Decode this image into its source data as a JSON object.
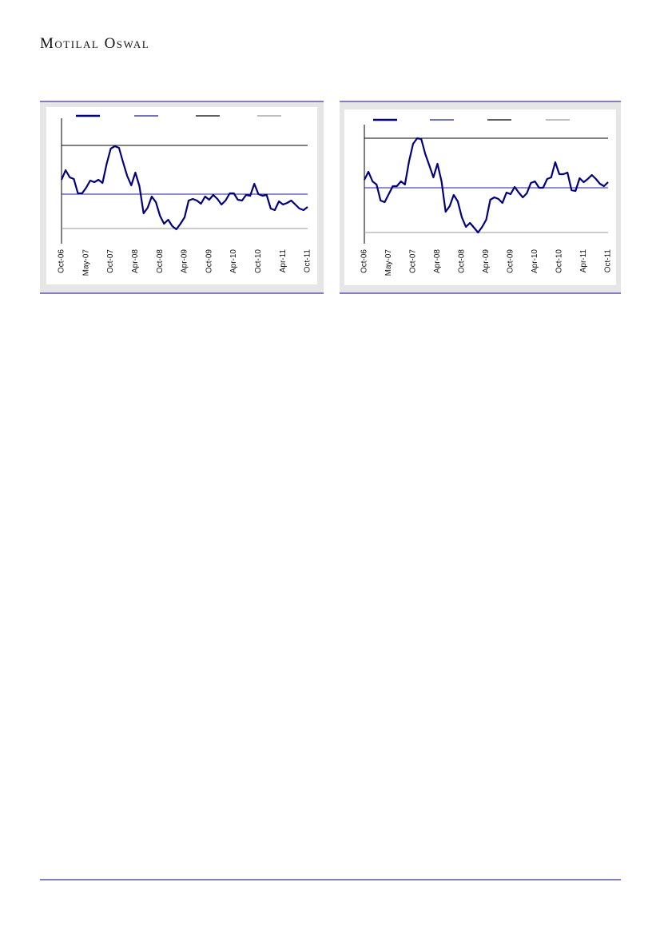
{
  "header": {
    "brand": "Motilal Oswal"
  },
  "chart_data": [
    {
      "type": "line",
      "categories": [
        "Oct-06",
        null,
        null,
        null,
        null,
        null,
        "May-07",
        null,
        null,
        null,
        null,
        null,
        "Oct-07",
        null,
        null,
        null,
        null,
        null,
        "Apr-08",
        null,
        null,
        null,
        null,
        null,
        "Oct-08",
        null,
        null,
        null,
        null,
        null,
        "Apr-09",
        null,
        null,
        null,
        null,
        null,
        "Oct-09",
        null,
        null,
        null,
        null,
        null,
        "Apr-10",
        null,
        null,
        null,
        null,
        null,
        "Oct-10",
        null,
        null,
        null,
        null,
        null,
        "Apr-11",
        null,
        null,
        null,
        null,
        null,
        "Oct-11"
      ],
      "series": [
        {
          "color": "#000080",
          "values": [
            80,
            92,
            83,
            81,
            63,
            63,
            70,
            79,
            77,
            80,
            76,
            100,
            119,
            122,
            120,
            102,
            85,
            73,
            89,
            72,
            38,
            45,
            59,
            52,
            35,
            25,
            30,
            22,
            18,
            25,
            33,
            54,
            56,
            54,
            50,
            59,
            55,
            61,
            56,
            49,
            54,
            63,
            63,
            55,
            54,
            61,
            60,
            75,
            62,
            60,
            61,
            44,
            42,
            53,
            49,
            51,
            54,
            49,
            44,
            42,
            46
          ]
        }
      ],
      "hlines": [
        {
          "value": 62,
          "color": "#1f1f9f"
        },
        {
          "value": 123,
          "color": "#000000"
        },
        {
          "value": 19,
          "color": "#999999"
        }
      ],
      "ylim": [
        0,
        157
      ]
    },
    {
      "type": "line",
      "categories": [
        "Oct-06",
        null,
        null,
        null,
        null,
        null,
        "May-07",
        null,
        null,
        null,
        null,
        null,
        "Oct-07",
        null,
        null,
        null,
        null,
        null,
        "Apr-08",
        null,
        null,
        null,
        null,
        null,
        "Oct-08",
        null,
        null,
        null,
        null,
        null,
        "Apr-09",
        null,
        null,
        null,
        null,
        null,
        "Oct-09",
        null,
        null,
        null,
        null,
        null,
        "Apr-10",
        null,
        null,
        null,
        null,
        null,
        "Oct-10",
        null,
        null,
        null,
        null,
        null,
        "Apr-11",
        null,
        null,
        null,
        null,
        null,
        "Oct-11"
      ],
      "series": [
        {
          "color": "#000080",
          "values": [
            80,
            90,
            78,
            74,
            54,
            52,
            62,
            72,
            72,
            78,
            74,
            103,
            125,
            132,
            131,
            112,
            98,
            83,
            100,
            78,
            40,
            47,
            61,
            53,
            33,
            21,
            26,
            20,
            14,
            21,
            30,
            55,
            58,
            56,
            51,
            64,
            62,
            71,
            64,
            58,
            63,
            76,
            78,
            70,
            70,
            81,
            83,
            102,
            87,
            87,
            89,
            67,
            66,
            82,
            77,
            81,
            86,
            81,
            75,
            72,
            77
          ]
        }
      ],
      "hlines": [
        {
          "value": 70,
          "color": "#1f1f9f"
        },
        {
          "value": 132,
          "color": "#000000"
        },
        {
          "value": 14,
          "color": "#999999"
        }
      ],
      "ylim": [
        0,
        149
      ]
    }
  ]
}
